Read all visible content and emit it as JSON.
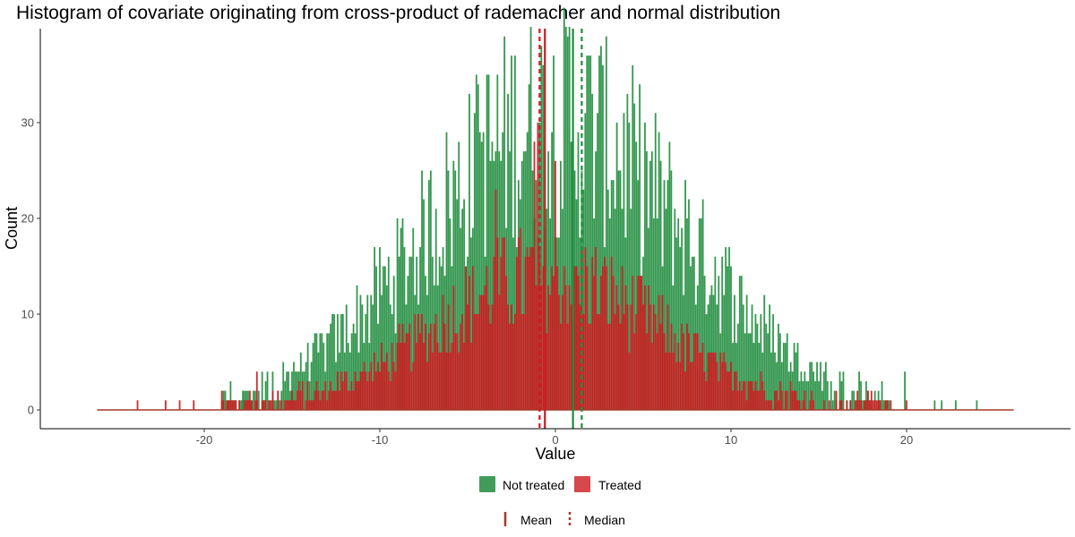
{
  "chart_data": {
    "type": "histogram",
    "title": "Histogram of covariate originating from cross-product of rademacher and normal distribution",
    "xlabel": "Value",
    "ylabel": "Count",
    "xlim": [
      -29,
      29
    ],
    "ylim": [
      -2,
      40
    ],
    "x_ticks": [
      -20,
      -10,
      0,
      10,
      20
    ],
    "y_ticks": [
      0,
      10,
      20,
      30
    ],
    "grid": false,
    "bin_width": 0.1,
    "bar_range": [
      -26.1,
      26.1
    ],
    "legend_placement": "bottom",
    "series": [
      {
        "name": "Not treated",
        "color": "#1e8c3c",
        "approx_peak_count": 30,
        "spread_sd": 7.5,
        "max_count": 40,
        "mean": 1.0,
        "median": 1.5,
        "outliers": [
          {
            "x": 21.6,
            "y": 1
          },
          {
            "x": 22.0,
            "y": 1
          },
          {
            "x": 22.8,
            "y": 1
          },
          {
            "x": 24.0,
            "y": 1
          },
          {
            "x": 19.9,
            "y": 4
          },
          {
            "x": -18.7,
            "y": 1
          },
          {
            "x": -17.8,
            "y": 2
          }
        ]
      },
      {
        "name": "Treated",
        "color": "#cc1a1e",
        "approx_peak_count": 14,
        "spread_sd": 6.5,
        "max_count": 30,
        "mean": -0.6,
        "median": -0.9,
        "outliers": [
          {
            "x": -23.8,
            "y": 1
          },
          {
            "x": -22.2,
            "y": 1
          },
          {
            "x": -21.4,
            "y": 1
          },
          {
            "x": -20.6,
            "y": 1
          },
          {
            "x": -17.0,
            "y": 4
          },
          {
            "x": 19.1,
            "y": 1
          },
          {
            "x": 20.0,
            "y": 1
          }
        ]
      }
    ],
    "mean_median_color": "#a33a2a",
    "legend": {
      "fill_items": [
        {
          "label": "Not treated",
          "color": "#1e8c3c"
        },
        {
          "label": "Treated",
          "color": "#cc1a1e"
        }
      ],
      "line_items": [
        {
          "label": "Mean",
          "dash": "solid"
        },
        {
          "label": "Median",
          "dash": "dotted"
        }
      ]
    }
  }
}
